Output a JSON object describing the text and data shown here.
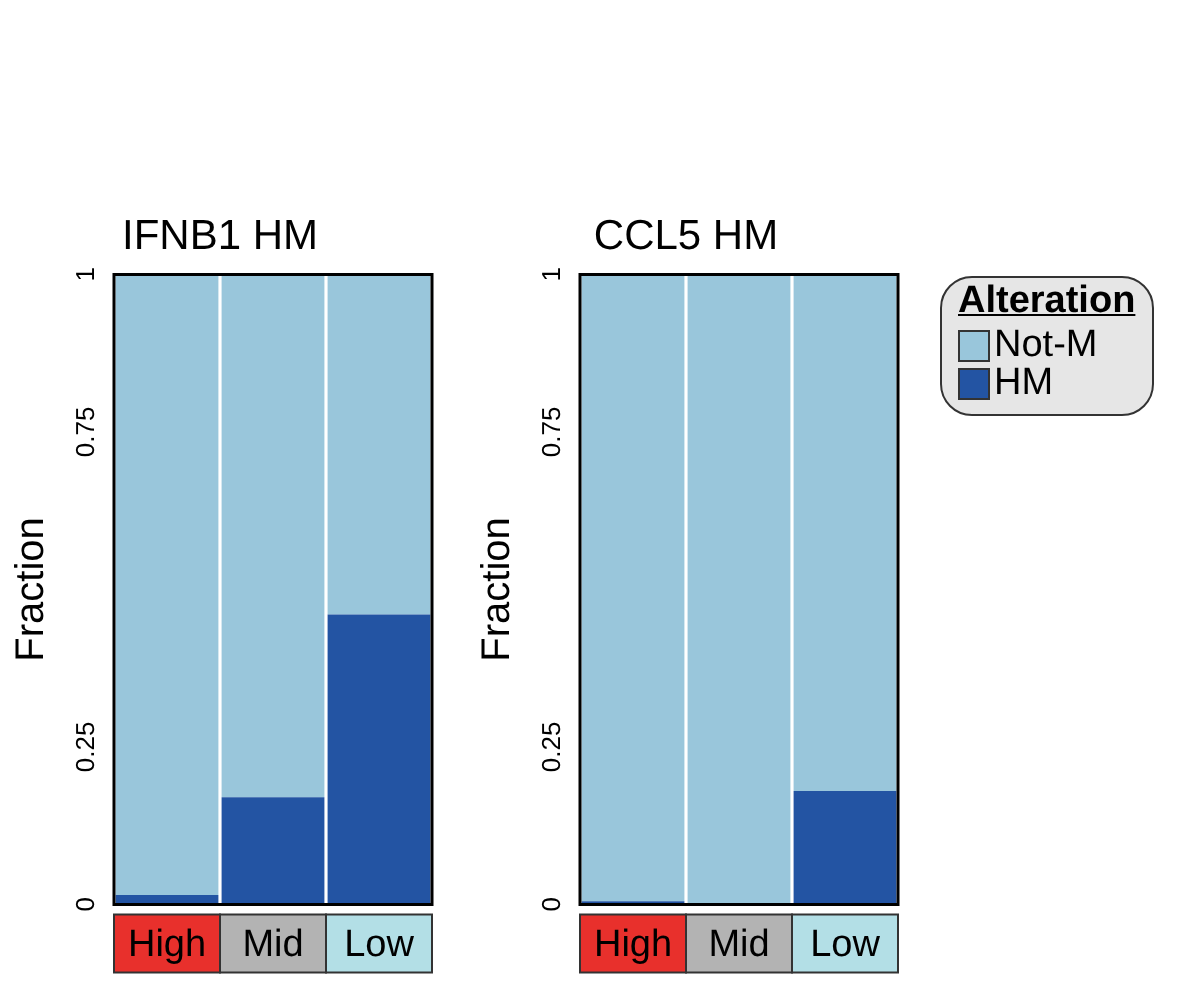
{
  "chart_data": [
    {
      "type": "bar",
      "title": "IFNB1 HM",
      "ylabel": "Fraction",
      "categories": [
        "High",
        "Mid",
        "Low"
      ],
      "stacked": true,
      "series": [
        {
          "color": "#2354a3",
          "values": [
            0.015,
            0.17,
            0.46
          ]
        },
        {
          "color": "#99c6db",
          "values": [
            0.985,
            0.83,
            0.54
          ]
        }
      ],
      "ylim": [
        0,
        1
      ],
      "yticks": [
        0,
        0.25,
        0.75,
        1
      ],
      "grid": false,
      "legend": false
    },
    {
      "type": "bar",
      "title": "CCL5 HM",
      "ylabel": "Fraction",
      "categories": [
        "High",
        "Mid",
        "Low"
      ],
      "stacked": true,
      "series": [
        {
          "name": "HM",
          "color": "#2354a3",
          "values": [
            0.005,
            0,
            0.18
          ]
        },
        {
          "name": "Not-M",
          "color": "#99c6db",
          "values": [
            0.995,
            1,
            0.82
          ]
        }
      ],
      "ylim": [
        0,
        1
      ],
      "yticks": [
        0,
        0.25,
        0.75,
        1
      ],
      "grid": false,
      "legend": "right",
      "legend_title": "Alteration"
    }
  ]
}
